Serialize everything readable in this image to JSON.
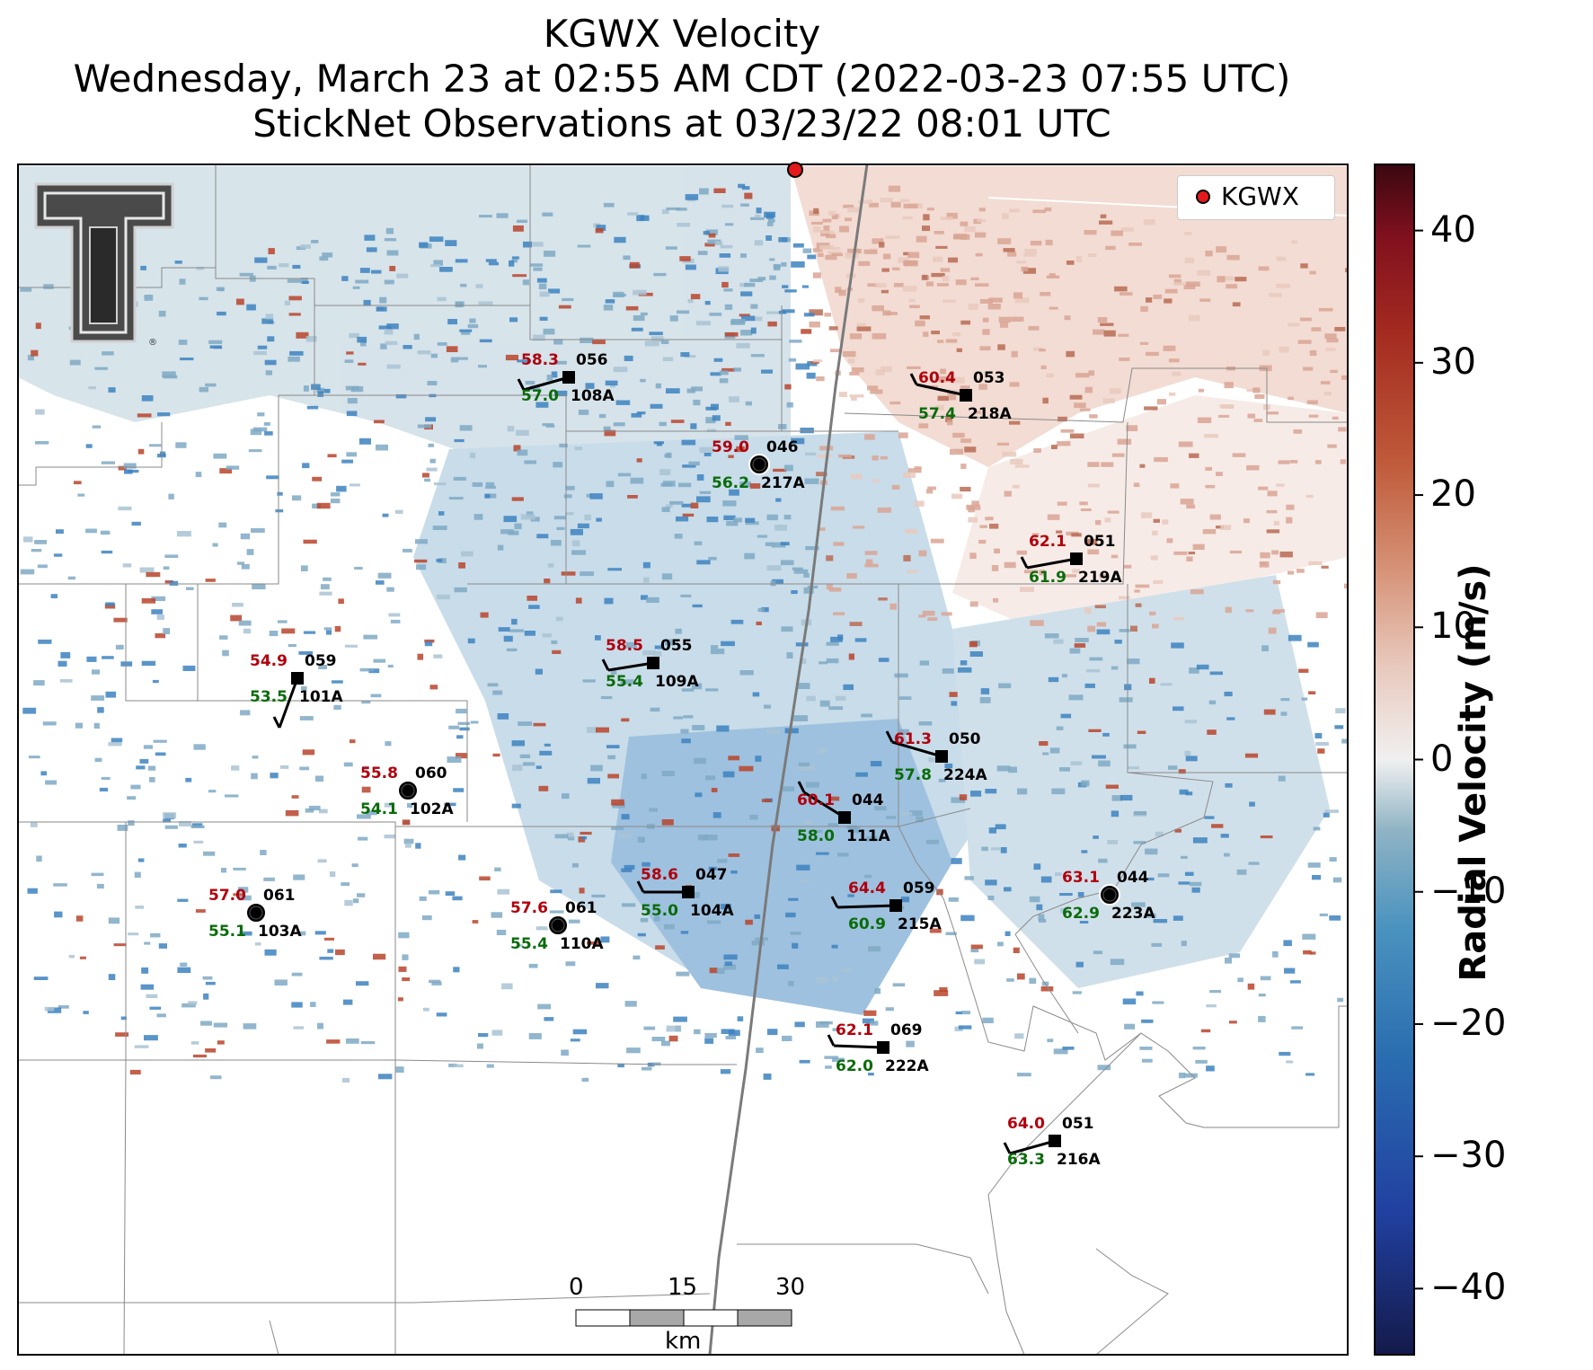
{
  "title": {
    "line1": "KGWX Velocity",
    "line2": "Wednesday, March 23 at 02:55 AM CDT (2022-03-23 07:55 UTC)",
    "line3": "StickNet Observations at 03/23/22 08:01 UTC"
  },
  "legend": {
    "radar_label": "KGWX",
    "marker_color": "#e31a1c"
  },
  "colorbar": {
    "title": "Radial Velocity (m/s)",
    "range": [
      -45,
      45
    ],
    "ticks": [
      "40",
      "30",
      "20",
      "10",
      "0",
      "−10",
      "−20",
      "−30",
      "−40"
    ],
    "colors": [
      "#f8f0ee",
      "#e8c8bc",
      "#d69277",
      "#bf5a3a",
      "#a32a20",
      "#80101e",
      "#3a0810"
    ],
    "neg_colors": [
      "#f0f0f0",
      "#c4d0d8",
      "#8fb3c4",
      "#4b93bf",
      "#2a6db0",
      "#2140a0",
      "#141a4a"
    ]
  },
  "scale_bar": {
    "labels": [
      "0",
      "15",
      "30"
    ],
    "unit": "km"
  },
  "logo": {
    "name": "Texas Tech Double T"
  },
  "stations": [
    {
      "id": "056",
      "name": "108A",
      "temp": "58.3",
      "dew": "57.0",
      "marker": "square"
    },
    {
      "id": "053",
      "name": "218A",
      "temp": "60.4",
      "dew": "57.4",
      "marker": "square"
    },
    {
      "id": "046",
      "name": "217A",
      "temp": "59.0",
      "dew": "56.2",
      "marker": "circle"
    },
    {
      "id": "051",
      "name": "219A",
      "temp": "62.1",
      "dew": "61.9",
      "marker": "square"
    },
    {
      "id": "055",
      "name": "109A",
      "temp": "58.5",
      "dew": "55.4",
      "marker": "square"
    },
    {
      "id": "059",
      "name": "101A",
      "temp": "54.9",
      "dew": "53.5",
      "marker": "square"
    },
    {
      "id": "050",
      "name": "224A",
      "temp": "61.3",
      "dew": "57.8",
      "marker": "square"
    },
    {
      "id": "060",
      "name": "102A",
      "temp": "55.8",
      "dew": "54.1",
      "marker": "circle"
    },
    {
      "id": "044",
      "name": "111A",
      "temp": "60.1",
      "dew": "58.0",
      "marker": "square"
    },
    {
      "id": "047",
      "name": "104A",
      "temp": "58.6",
      "dew": "55.0",
      "marker": "square"
    },
    {
      "id": "059",
      "name": "215A",
      "temp": "64.4",
      "dew": "60.9",
      "marker": "square"
    },
    {
      "id": "044",
      "name": "223A",
      "temp": "63.1",
      "dew": "62.9",
      "marker": "circle"
    },
    {
      "id": "061",
      "name": "103A",
      "temp": "57.0",
      "dew": "55.1",
      "marker": "circle"
    },
    {
      "id": "061",
      "name": "110A",
      "temp": "57.6",
      "dew": "55.4",
      "marker": "circle"
    },
    {
      "id": "069",
      "name": "222A",
      "temp": "62.1",
      "dew": "62.0",
      "marker": "square"
    },
    {
      "id": "051",
      "name": "216A",
      "temp": "64.0",
      "dew": "63.3",
      "marker": "square"
    }
  ]
}
